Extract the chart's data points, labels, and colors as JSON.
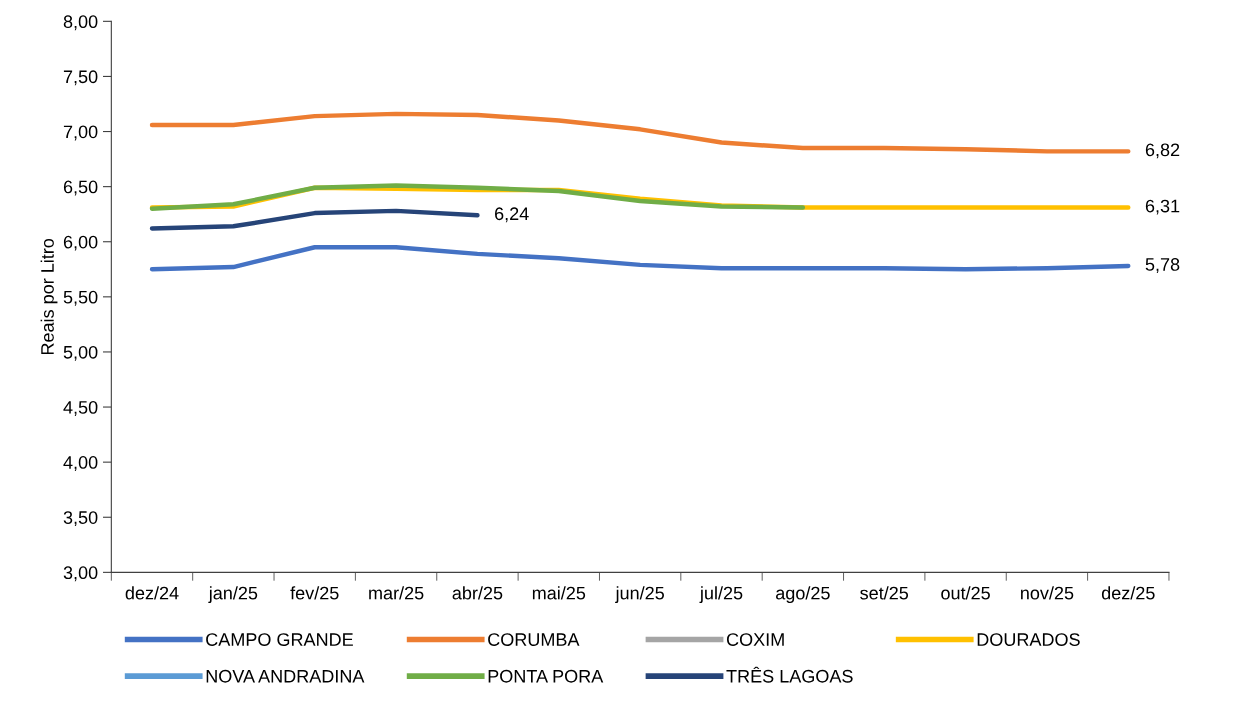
{
  "chart_data": {
    "type": "line",
    "ylabel": "Reais por Litro",
    "categories": [
      "dez/24",
      "jan/25",
      "fev/25",
      "mar/25",
      "abr/25",
      "mai/25",
      "jun/25",
      "jul/25",
      "ago/25",
      "set/25",
      "out/25",
      "nov/25",
      "dez/25"
    ],
    "series": [
      {
        "name": "CAMPO GRANDE",
        "color": "#4472c4",
        "values": [
          5.75,
          5.77,
          5.95,
          5.95,
          5.89,
          5.85,
          5.79,
          5.76,
          5.76,
          5.76,
          5.75,
          5.76,
          5.78
        ],
        "value_labels": [
          null,
          null,
          null,
          null,
          null,
          null,
          null,
          null,
          null,
          null,
          null,
          null,
          "5,78"
        ]
      },
      {
        "name": "CORUMBA",
        "color": "#ed7d31",
        "values": [
          7.06,
          7.06,
          7.14,
          7.16,
          7.15,
          7.1,
          7.02,
          6.9,
          6.85,
          6.85,
          6.84,
          6.82,
          6.82
        ],
        "value_labels": [
          null,
          null,
          null,
          null,
          null,
          null,
          null,
          null,
          null,
          null,
          null,
          null,
          "6,82"
        ]
      },
      {
        "name": "COXIM",
        "color": "#a5a5a5",
        "values": [
          null,
          null,
          null,
          null,
          null,
          null,
          null,
          null,
          null,
          null,
          null,
          null,
          null
        ]
      },
      {
        "name": "DOURADOS",
        "color": "#ffc000",
        "values": [
          6.31,
          6.32,
          6.49,
          6.48,
          6.47,
          6.47,
          6.39,
          6.33,
          6.31,
          6.31,
          6.31,
          6.31,
          6.31
        ],
        "value_labels": [
          null,
          null,
          null,
          null,
          null,
          null,
          null,
          null,
          null,
          null,
          null,
          null,
          "6,31"
        ]
      },
      {
        "name": "NOVA ANDRADINA",
        "color": "#5b9bd5",
        "values": [
          null,
          null,
          null,
          null,
          null,
          null,
          null,
          null,
          null,
          null,
          null,
          null,
          null
        ]
      },
      {
        "name": "PONTA PORA",
        "color": "#70ad47",
        "values": [
          6.3,
          6.34,
          6.49,
          6.51,
          6.49,
          6.46,
          6.37,
          6.32,
          6.31,
          null,
          null,
          null,
          null
        ]
      },
      {
        "name": "TRÊS LAGOAS",
        "color": "#264478",
        "values": [
          6.12,
          6.14,
          6.26,
          6.28,
          6.24,
          null,
          null,
          null,
          null,
          null,
          null,
          null,
          null
        ],
        "value_labels": [
          null,
          null,
          null,
          null,
          "6,24",
          null,
          null,
          null,
          null,
          null,
          null,
          null,
          null
        ]
      }
    ],
    "ylim": [
      3.0,
      8.0
    ],
    "yticks": [
      {
        "value": 3.0,
        "label": "3,00"
      },
      {
        "value": 3.5,
        "label": "3,50"
      },
      {
        "value": 4.0,
        "label": "4,00"
      },
      {
        "value": 4.5,
        "label": "4,50"
      },
      {
        "value": 5.0,
        "label": "5,00"
      },
      {
        "value": 5.5,
        "label": "5,50"
      },
      {
        "value": 6.0,
        "label": "6,00"
      },
      {
        "value": 6.5,
        "label": "6,50"
      },
      {
        "value": 7.0,
        "label": "7,00"
      },
      {
        "value": 7.5,
        "label": "7,50"
      },
      {
        "value": 8.0,
        "label": "8,00"
      }
    ],
    "grid": false,
    "legend": "bottom",
    "marker": "none",
    "line_style": "solid"
  }
}
